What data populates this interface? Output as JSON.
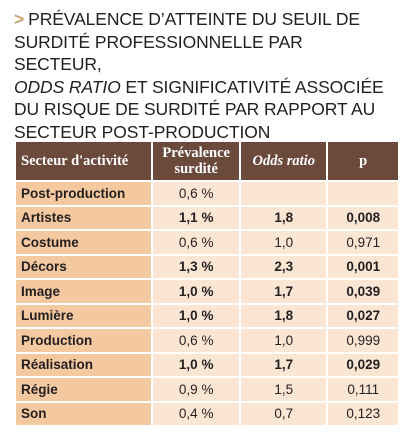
{
  "title": {
    "chevron": ">",
    "line1": "PRÉVALENCE D’ATTEINTE DU SEUIL DE",
    "line2": "SURDITÉ PROFESSIONNELLE PAR SECTEUR,",
    "line3_italic": "ODDS RATIO",
    "line3_rest": " ET SIGNIFICATIVITÉ ASSOCIÉE",
    "line4": "DU RISQUE DE SURDITÉ PAR RAPPORT AU",
    "line5": "SECTEUR POST-PRODUCTION"
  },
  "table": {
    "headers": {
      "sector": "Secteur d'activité",
      "prevalence_l1": "Prévalence",
      "prevalence_l2": "surdité",
      "odds": "Odds ratio",
      "p": "p"
    },
    "rows": [
      {
        "sector": "Post-production",
        "prevalence": "0,6 %",
        "odds": "",
        "p": "",
        "bold": false
      },
      {
        "sector": "Artistes",
        "prevalence": "1,1 %",
        "odds": "1,8",
        "p": "0,008",
        "bold": true
      },
      {
        "sector": "Costume",
        "prevalence": "0,6 %",
        "odds": "1,0",
        "p": "0,971",
        "bold": false
      },
      {
        "sector": "Décors",
        "prevalence": "1,3 %",
        "odds": "2,3",
        "p": "0,001",
        "bold": true
      },
      {
        "sector": "Image",
        "prevalence": "1,0 %",
        "odds": "1,7",
        "p": "0,039",
        "bold": true
      },
      {
        "sector": "Lumière",
        "prevalence": "1,0 %",
        "odds": "1,8",
        "p": "0,027",
        "bold": true
      },
      {
        "sector": "Production",
        "prevalence": "0,6 %",
        "odds": "1,0",
        "p": "0,999",
        "bold": false
      },
      {
        "sector": "Réalisation",
        "prevalence": "1,0 %",
        "odds": "1,7",
        "p": "0,029",
        "bold": true
      },
      {
        "sector": "Régie",
        "prevalence": "0,9 %",
        "odds": "1,5",
        "p": "0,111",
        "bold": false
      },
      {
        "sector": "Son",
        "prevalence": "0,4 %",
        "odds": "0,7",
        "p": "0,123",
        "bold": false
      }
    ]
  },
  "colors": {
    "header_bg": "#6b4a3b",
    "sector_bg": "#f4c9a0",
    "cell_bg": "#fae6d3",
    "chevron": "#c8a06e"
  }
}
